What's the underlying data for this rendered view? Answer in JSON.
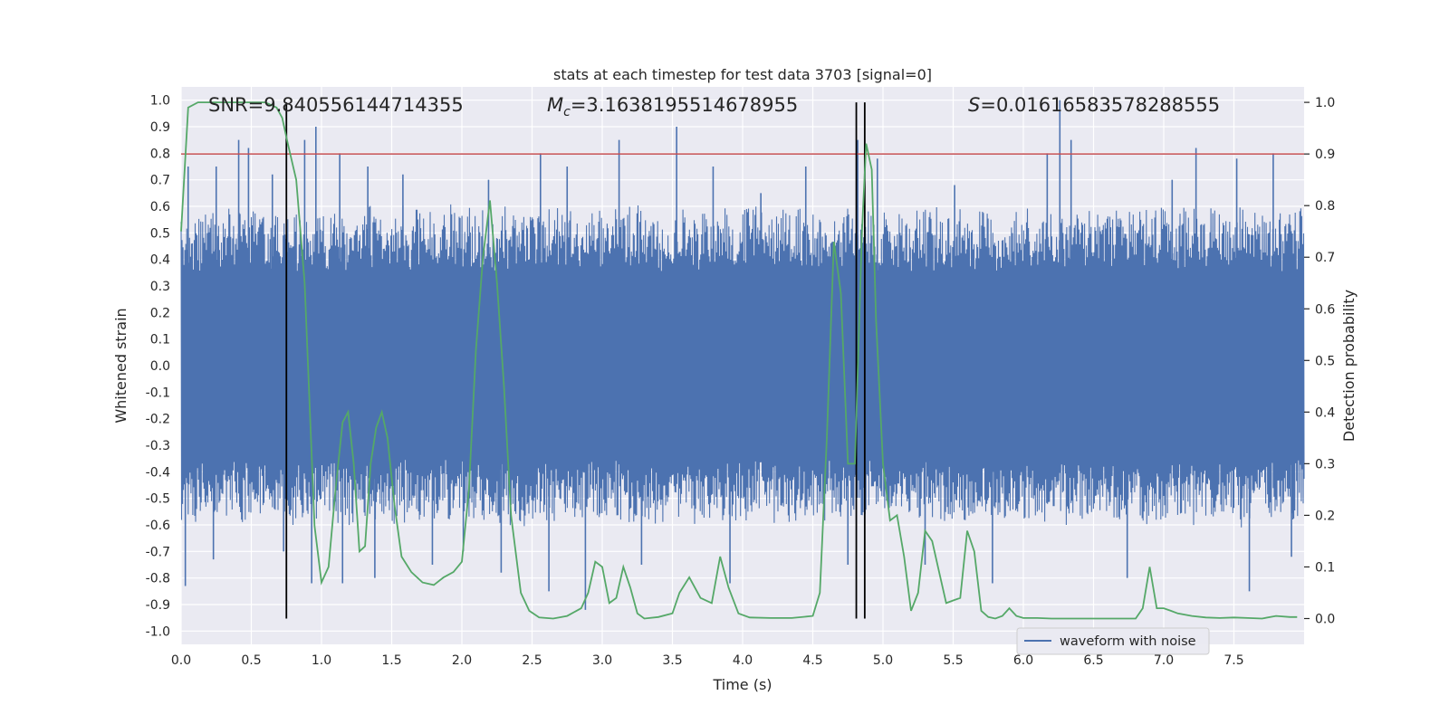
{
  "chart_data": {
    "type": "line",
    "title": "stats at each timestep for test data 3703 [signal=0]",
    "xlabel": "Time (s)",
    "ylabel_left": "Whitened strain",
    "ylabel_right": "Detection probability",
    "xlim": [
      0,
      8
    ],
    "ylim_left": [
      -1.05,
      1.05
    ],
    "ylim_right": [
      -0.05,
      1.03
    ],
    "grid": true,
    "background": "#EAEAF2",
    "legend": {
      "position": "bottom-right",
      "entries": [
        "waveform with noise"
      ]
    },
    "x_ticks": [
      "0.0",
      "0.5",
      "1.0",
      "1.5",
      "2.0",
      "2.5",
      "3.0",
      "3.5",
      "4.0",
      "4.5",
      "5.0",
      "5.5",
      "6.0",
      "6.5",
      "7.0",
      "7.5"
    ],
    "x_tick_values": [
      0,
      0.5,
      1,
      1.5,
      2,
      2.5,
      3,
      3.5,
      4,
      4.5,
      5,
      5.5,
      6,
      6.5,
      7,
      7.5
    ],
    "y_left_ticks": [
      "1.0",
      "0.9",
      "0.8",
      "0.7",
      "0.6",
      "0.5",
      "0.4",
      "0.3",
      "0.2",
      "0.1",
      "0.0",
      "-0.1",
      "-0.2",
      "-0.3",
      "-0.4",
      "-0.5",
      "-0.6",
      "-0.7",
      "-0.8",
      "-0.9",
      "-1.0"
    ],
    "y_left_tick_values": [
      1,
      0.9,
      0.8,
      0.7,
      0.6,
      0.5,
      0.4,
      0.3,
      0.2,
      0.1,
      0,
      -0.1,
      -0.2,
      -0.3,
      -0.4,
      -0.5,
      -0.6,
      -0.7,
      -0.8,
      -0.9,
      -1
    ],
    "y_right_ticks": [
      "1.0",
      "0.9",
      "0.8",
      "0.7",
      "0.6",
      "0.5",
      "0.4",
      "0.3",
      "0.2",
      "0.1",
      "0.0"
    ],
    "y_right_tick_values": [
      1,
      0.9,
      0.8,
      0.7,
      0.6,
      0.5,
      0.4,
      0.3,
      0.2,
      0.1,
      0
    ],
    "annotations": {
      "snr": "SNR=9.840556144714355",
      "mc_label": "M",
      "mc_sub": "c",
      "mc_value": "=3.1638195514678955",
      "s_label": "S",
      "s_value": "=0.01616583578288555"
    },
    "threshold": {
      "value": 0.9,
      "axis": "right",
      "color": "#C44E52"
    },
    "vertical_markers": {
      "x": [
        0.75,
        4.81,
        4.87
      ],
      "y_range_right": [
        0,
        1
      ],
      "color": "#000000"
    },
    "series": [
      {
        "name": "waveform with noise",
        "axis": "left",
        "color": "#4C72B0",
        "style": "dense noisy waveform",
        "spikes": [
          [
            0.03,
            -0.83
          ],
          [
            0.05,
            0.75
          ],
          [
            0.25,
            0.75
          ],
          [
            0.23,
            -0.73
          ],
          [
            0.41,
            0.85
          ],
          [
            0.48,
            0.82
          ],
          [
            0.65,
            0.72
          ],
          [
            0.73,
            -0.7
          ],
          [
            0.88,
            0.85
          ],
          [
            0.96,
            0.9
          ],
          [
            0.93,
            -0.82
          ],
          [
            1.13,
            0.8
          ],
          [
            1.15,
            -0.82
          ],
          [
            1.33,
            0.75
          ],
          [
            1.38,
            -0.8
          ],
          [
            1.58,
            0.72
          ],
          [
            1.79,
            -0.75
          ],
          [
            2.01,
            -0.7
          ],
          [
            2.19,
            0.7
          ],
          [
            2.28,
            -0.78
          ],
          [
            2.56,
            0.8
          ],
          [
            2.62,
            -0.85
          ],
          [
            2.75,
            0.75
          ],
          [
            2.88,
            -0.92
          ],
          [
            3.12,
            0.85
          ],
          [
            3.28,
            -0.75
          ],
          [
            3.53,
            0.9
          ],
          [
            3.79,
            0.75
          ],
          [
            3.91,
            -0.82
          ],
          [
            4.13,
            0.65
          ],
          [
            4.45,
            0.75
          ],
          [
            4.75,
            -0.75
          ],
          [
            4.82,
            0.85
          ],
          [
            4.96,
            0.78
          ],
          [
            5.3,
            -0.75
          ],
          [
            5.51,
            0.68
          ],
          [
            5.78,
            -0.82
          ],
          [
            6.17,
            0.8
          ],
          [
            6.26,
            1.0
          ],
          [
            6.34,
            0.85
          ],
          [
            6.74,
            -0.8
          ],
          [
            7.06,
            0.7
          ],
          [
            7.23,
            0.82
          ],
          [
            7.52,
            0.78
          ],
          [
            7.61,
            -0.85
          ],
          [
            7.78,
            0.8
          ],
          [
            7.91,
            -0.72
          ]
        ]
      },
      {
        "name": "",
        "axis": "right",
        "color": "#55A868",
        "x": [
          0.0,
          0.05,
          0.12,
          0.2,
          0.3,
          0.4,
          0.5,
          0.6,
          0.68,
          0.72,
          0.76,
          0.82,
          0.88,
          0.95,
          1.0,
          1.05,
          1.1,
          1.15,
          1.19,
          1.23,
          1.27,
          1.31,
          1.35,
          1.39,
          1.43,
          1.47,
          1.52,
          1.57,
          1.64,
          1.72,
          1.8,
          1.87,
          1.94,
          2.0,
          2.05,
          2.1,
          2.15,
          2.2,
          2.25,
          2.3,
          2.35,
          2.42,
          2.48,
          2.55,
          2.65,
          2.75,
          2.85,
          2.9,
          2.95,
          3.0,
          3.05,
          3.1,
          3.15,
          3.2,
          3.25,
          3.3,
          3.4,
          3.5,
          3.55,
          3.62,
          3.7,
          3.78,
          3.84,
          3.9,
          3.97,
          4.05,
          4.2,
          4.35,
          4.5,
          4.55,
          4.6,
          4.65,
          4.7,
          4.75,
          4.8,
          4.85,
          4.88,
          4.92,
          4.95,
          5.0,
          5.05,
          5.1,
          5.15,
          5.2,
          5.25,
          5.3,
          5.35,
          5.4,
          5.45,
          5.5,
          5.55,
          5.6,
          5.65,
          5.7,
          5.75,
          5.8,
          5.85,
          5.9,
          5.95,
          6.0,
          6.05,
          6.1,
          6.2,
          6.3,
          6.4,
          6.5,
          6.6,
          6.7,
          6.8,
          6.85,
          6.9,
          6.95,
          7.0,
          7.05,
          7.1,
          7.2,
          7.3,
          7.4,
          7.5,
          7.6,
          7.7,
          7.8,
          7.9,
          7.95
        ],
        "y": [
          0.75,
          0.99,
          1.0,
          1.0,
          1.0,
          1.0,
          1.0,
          1.0,
          0.99,
          0.97,
          0.92,
          0.85,
          0.65,
          0.18,
          0.07,
          0.1,
          0.25,
          0.38,
          0.4,
          0.3,
          0.13,
          0.14,
          0.3,
          0.37,
          0.4,
          0.35,
          0.22,
          0.12,
          0.09,
          0.07,
          0.065,
          0.08,
          0.09,
          0.11,
          0.25,
          0.52,
          0.7,
          0.81,
          0.65,
          0.45,
          0.2,
          0.05,
          0.015,
          0.002,
          0.0,
          0.005,
          0.02,
          0.05,
          0.11,
          0.1,
          0.03,
          0.04,
          0.1,
          0.06,
          0.01,
          0.0,
          0.003,
          0.01,
          0.05,
          0.08,
          0.04,
          0.03,
          0.12,
          0.06,
          0.01,
          0.002,
          0.001,
          0.001,
          0.005,
          0.05,
          0.35,
          0.73,
          0.63,
          0.3,
          0.3,
          0.75,
          0.92,
          0.87,
          0.58,
          0.3,
          0.19,
          0.2,
          0.12,
          0.015,
          0.05,
          0.17,
          0.15,
          0.09,
          0.03,
          0.035,
          0.04,
          0.17,
          0.13,
          0.015,
          0.003,
          0.0,
          0.005,
          0.02,
          0.005,
          0.001,
          0.001,
          0.001,
          0.0,
          0.0,
          0.0,
          0.0,
          0.0,
          0.0,
          0.0,
          0.02,
          0.1,
          0.02,
          0.02,
          0.015,
          0.01,
          0.005,
          0.002,
          0.001,
          0.002,
          0.001,
          0.0,
          0.005,
          0.003,
          0.003
        ]
      }
    ]
  }
}
